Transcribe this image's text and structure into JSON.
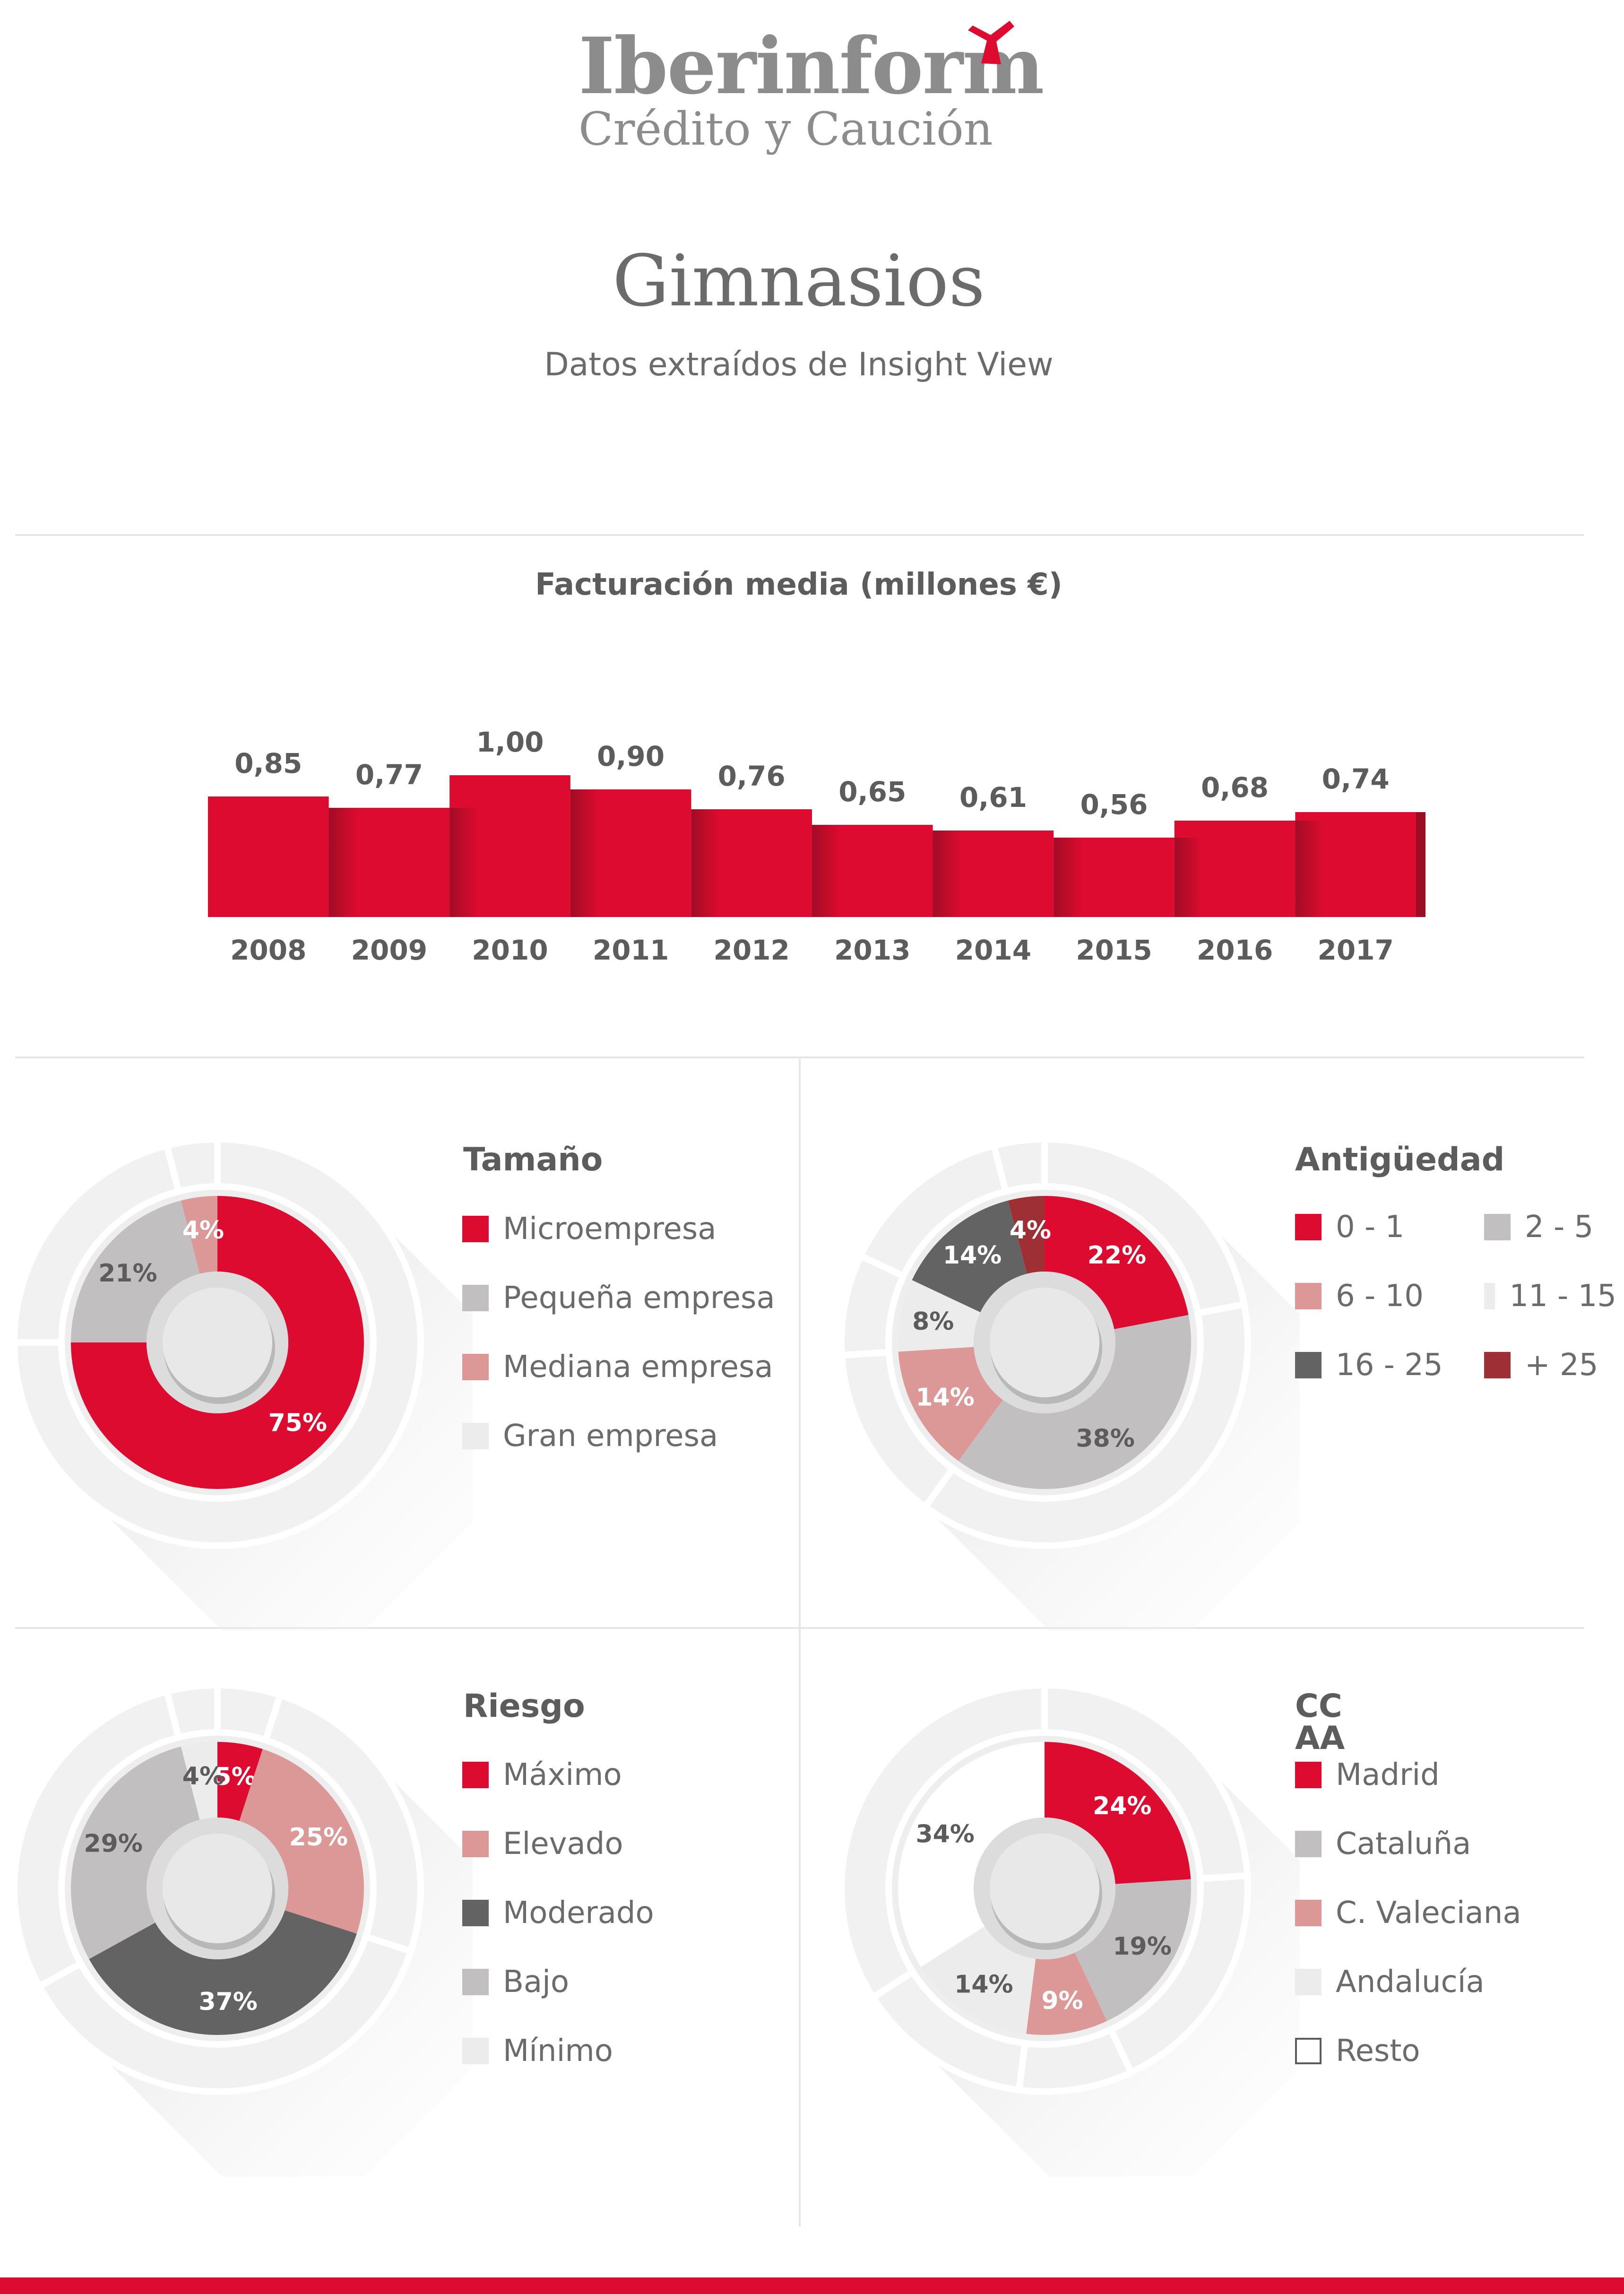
{
  "brand": {
    "logo_word": "Iberinform",
    "logo_sub": "Crédito y Caución",
    "accent": "#dd0b2f"
  },
  "header": {
    "title": "Gimnasios",
    "subtitle": "Datos extraídos de Insight View"
  },
  "chart_data": [
    {
      "type": "bar",
      "title": "Facturación media (millones €)",
      "categories": [
        "2008",
        "2009",
        "2010",
        "2011",
        "2012",
        "2013",
        "2014",
        "2015",
        "2016",
        "2017"
      ],
      "values": [
        0.85,
        0.77,
        1.0,
        0.9,
        0.76,
        0.65,
        0.61,
        0.56,
        0.68,
        0.74
      ],
      "data_labels": [
        "0,85",
        "0,77",
        "1,00",
        "0,90",
        "0,76",
        "0,65",
        "0,61",
        "0,56",
        "0,68",
        "0,74"
      ],
      "color": "#dd0b2f"
    },
    {
      "type": "pie",
      "title": "Tamaño",
      "slices": [
        {
          "label": "Microempresa",
          "value": 75,
          "text": "75%",
          "color": "#dd0b2f",
          "text_color": "#ffffff"
        },
        {
          "label": "Pequeña empresa",
          "value": 21,
          "text": "21%",
          "color": "#c1bfbf",
          "text_color": "#5c5c5c"
        },
        {
          "label": "Mediana empresa",
          "value": 4,
          "text": "4%",
          "color": "#dc9896",
          "text_color": "#ffffff"
        },
        {
          "label": "Gran empresa",
          "value": 0,
          "text": "",
          "color": "#ececec",
          "text_color": "#5c5c5c"
        }
      ]
    },
    {
      "type": "pie",
      "title": "Antigüedad",
      "slices": [
        {
          "label": "0 - 1",
          "value": 22,
          "text": "22%",
          "color": "#dd0b2f",
          "text_color": "#ffffff"
        },
        {
          "label": "2 - 5",
          "value": 38,
          "text": "38%",
          "color": "#c1bfbf",
          "text_color": "#5c5c5c"
        },
        {
          "label": "6 - 10",
          "value": 14,
          "text": "14%",
          "color": "#dc9896",
          "text_color": "#ffffff"
        },
        {
          "label": "11 - 15",
          "value": 8,
          "text": "8%",
          "color": "#ececec",
          "text_color": "#5c5c5c"
        },
        {
          "label": "16 - 25",
          "value": 14,
          "text": "14%",
          "color": "#636363",
          "text_color": "#ffffff"
        },
        {
          "label": "+ 25",
          "value": 4,
          "text": "4%",
          "color": "#9e2f34",
          "text_color": "#ffffff"
        }
      ]
    },
    {
      "type": "pie",
      "title": "Riesgo",
      "slices": [
        {
          "label": "Máximo",
          "value": 5,
          "text": "5%",
          "color": "#dd0b2f",
          "text_color": "#ffffff"
        },
        {
          "label": "Elevado",
          "value": 25,
          "text": "25%",
          "color": "#dc9896",
          "text_color": "#ffffff"
        },
        {
          "label": "Moderado",
          "value": 37,
          "text": "37%",
          "color": "#636363",
          "text_color": "#ffffff"
        },
        {
          "label": "Bajo",
          "value": 29,
          "text": "29%",
          "color": "#c1bfbf",
          "text_color": "#5c5c5c"
        },
        {
          "label": "Mínimo",
          "value": 4,
          "text": "4%",
          "color": "#ececec",
          "text_color": "#5c5c5c"
        }
      ]
    },
    {
      "type": "pie",
      "title": "CC AA",
      "slices": [
        {
          "label": "Madrid",
          "value": 24,
          "text": "24%",
          "color": "#dd0b2f",
          "text_color": "#ffffff"
        },
        {
          "label": "Cataluña",
          "value": 19,
          "text": "19%",
          "color": "#c1bfbf",
          "text_color": "#5c5c5c"
        },
        {
          "label": "C. Valeciana",
          "value": 9,
          "text": "9%",
          "color": "#dc9896",
          "text_color": "#ffffff"
        },
        {
          "label": "Andalucía",
          "value": 14,
          "text": "14%",
          "color": "#ececec",
          "text_color": "#5c5c5c"
        },
        {
          "label": "Resto",
          "value": 34,
          "text": "34%",
          "color": "#ffffff",
          "text_color": "#5c5c5c"
        }
      ]
    }
  ]
}
